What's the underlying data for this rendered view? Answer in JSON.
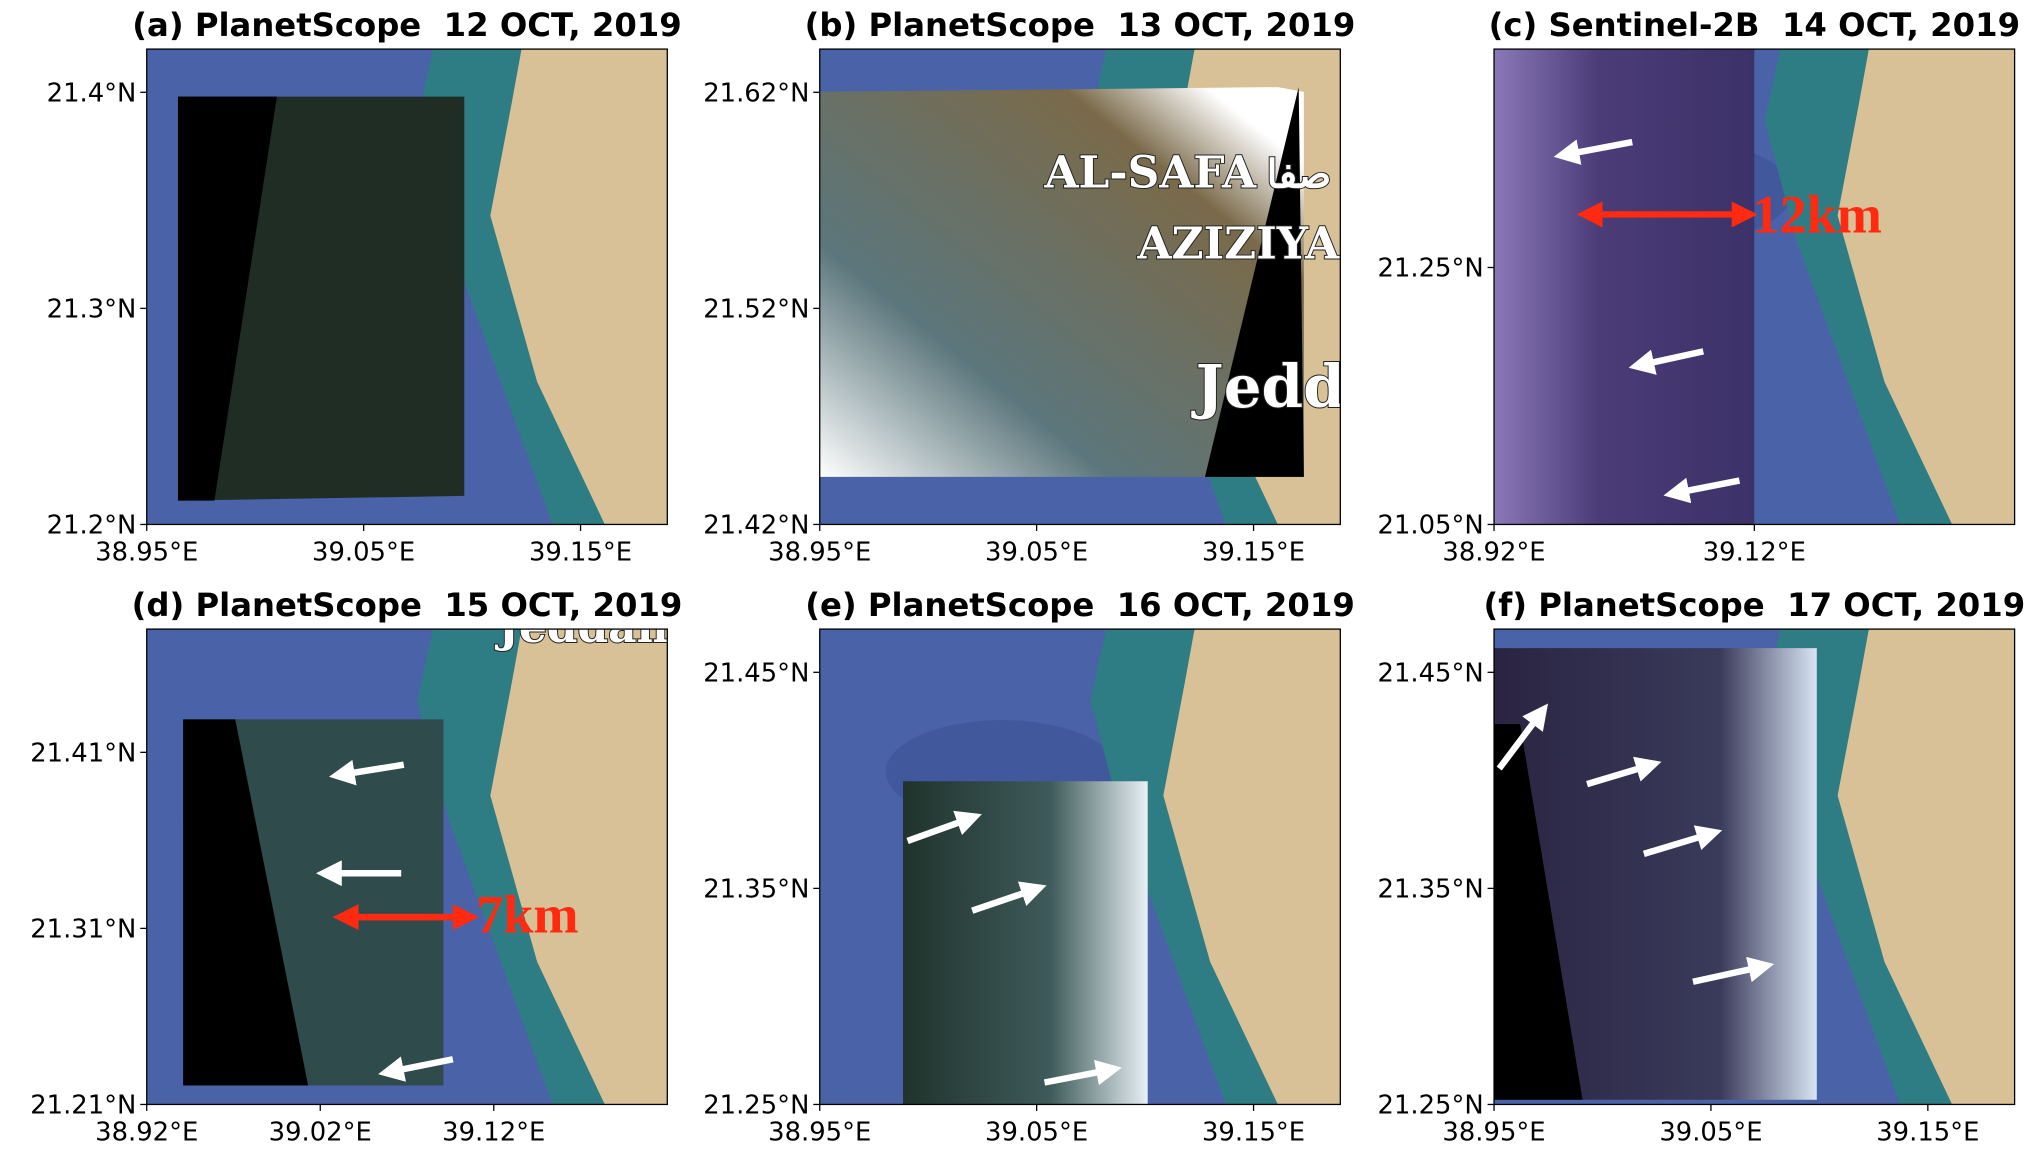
{
  "panels": [
    {
      "title": "(a) PlanetScope  12 OCT, 2019",
      "xlim": [
        38.95,
        39.19
      ],
      "ylim": [
        21.2,
        21.42
      ],
      "xticks": [
        {
          "value": 38.95,
          "label": "38.95°E"
        },
        {
          "value": 39.05,
          "label": "39.05°E"
        },
        {
          "value": 39.15,
          "label": "39.15°E"
        }
      ],
      "yticks": [
        {
          "value": 21.2,
          "label": "21.2°N"
        },
        {
          "value": 21.3,
          "label": "21.3°N"
        },
        {
          "value": 21.4,
          "label": "21.4°N"
        }
      ],
      "labels": []
    },
    {
      "title": "(b) PlanetScope  13 OCT, 2019",
      "xlim": [
        38.95,
        39.19
      ],
      "ylim": [
        21.42,
        21.64
      ],
      "xticks": [
        {
          "value": 38.95,
          "label": "38.95°E"
        },
        {
          "value": 39.05,
          "label": "39.05°E"
        },
        {
          "value": 39.15,
          "label": "39.15°E"
        }
      ],
      "yticks": [
        {
          "value": 21.42,
          "label": "21.42°N"
        },
        {
          "value": 21.52,
          "label": "21.52°N"
        },
        {
          "value": 21.62,
          "label": "21.62°N"
        }
      ],
      "labels": [
        "AL-SAFA",
        "صفا",
        "AZIZIYA",
        "Jedda"
      ]
    },
    {
      "title": "(c) Sentinel-2B  14 OCT, 2019",
      "xlim": [
        38.92,
        39.32
      ],
      "ylim": [
        21.05,
        21.42
      ],
      "xticks": [
        {
          "value": 38.92,
          "label": "38.92°E"
        },
        {
          "value": 39.12,
          "label": "39.12°E"
        }
      ],
      "yticks": [
        {
          "value": 21.05,
          "label": "21.05°N"
        },
        {
          "value": 21.25,
          "label": "21.25°N"
        }
      ],
      "labels": [
        "12km"
      ]
    },
    {
      "title": "(d) PlanetScope  15 OCT, 2019",
      "xlim": [
        38.92,
        39.22
      ],
      "ylim": [
        21.21,
        21.48
      ],
      "xticks": [
        {
          "value": 38.92,
          "label": "38.92°E"
        },
        {
          "value": 39.02,
          "label": "39.02°E"
        },
        {
          "value": 39.12,
          "label": "39.12°E"
        }
      ],
      "yticks": [
        {
          "value": 21.21,
          "label": "21.21°N"
        },
        {
          "value": 21.31,
          "label": "21.31°N"
        },
        {
          "value": 21.41,
          "label": "21.41°N"
        }
      ],
      "labels": [
        "Jeddah",
        "7km"
      ]
    },
    {
      "title": "(e) PlanetScope  16 OCT, 2019",
      "xlim": [
        38.95,
        39.19
      ],
      "ylim": [
        21.25,
        21.47
      ],
      "xticks": [
        {
          "value": 38.95,
          "label": "38.95°E"
        },
        {
          "value": 39.05,
          "label": "39.05°E"
        },
        {
          "value": 39.15,
          "label": "39.15°E"
        }
      ],
      "yticks": [
        {
          "value": 21.25,
          "label": "21.25°N"
        },
        {
          "value": 21.35,
          "label": "21.35°N"
        },
        {
          "value": 21.45,
          "label": "21.45°N"
        }
      ],
      "labels": []
    },
    {
      "title": "(f) PlanetScope  17 OCT, 2019",
      "xlim": [
        38.95,
        39.19
      ],
      "ylim": [
        21.25,
        21.47
      ],
      "xticks": [
        {
          "value": 38.95,
          "label": "38.95°E"
        },
        {
          "value": 39.05,
          "label": "39.05°E"
        },
        {
          "value": 39.15,
          "label": "39.15°E"
        }
      ],
      "yticks": [
        {
          "value": 21.25,
          "label": "21.25°N"
        },
        {
          "value": 21.35,
          "label": "21.35°N"
        },
        {
          "value": 21.45,
          "label": "21.45°N"
        }
      ],
      "labels": []
    }
  ]
}
